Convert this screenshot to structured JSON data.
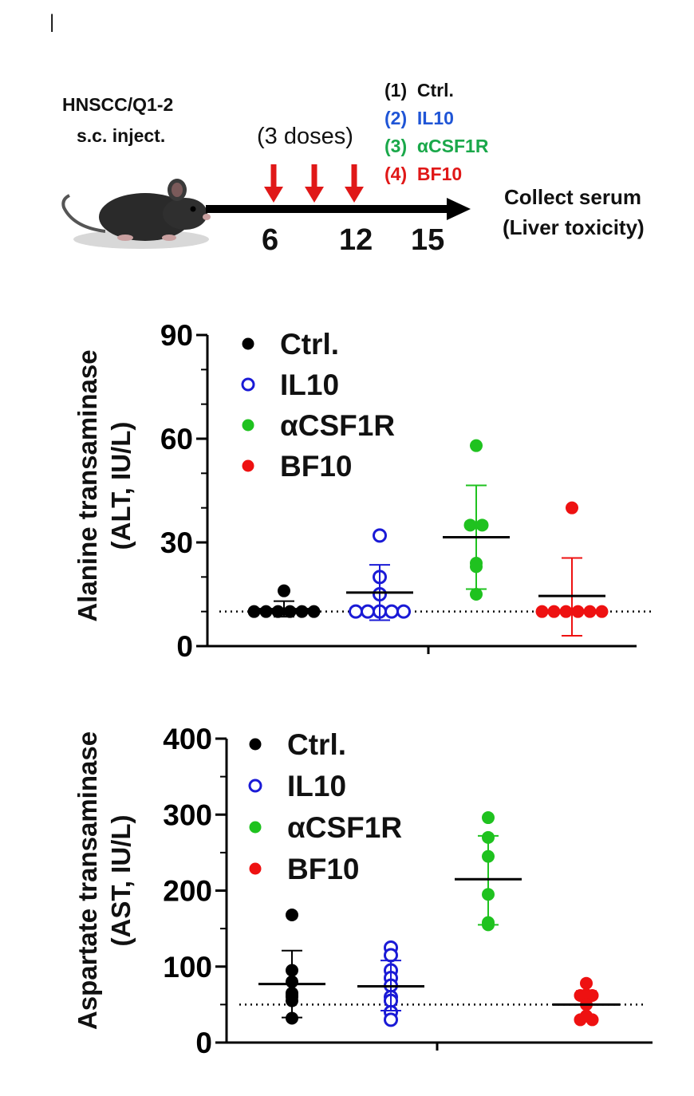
{
  "marker": "|",
  "schematic": {
    "model_line1": "HNSCC/Q1-2",
    "model_line2": "s.c. inject.",
    "doses": "(3 doses)",
    "days": [
      "6",
      "12",
      "15"
    ],
    "groups": [
      {
        "num": "(1)",
        "name": "Ctrl.",
        "color": "#111111"
      },
      {
        "num": "(2)",
        "name": "IL10",
        "color": "#1f55d6"
      },
      {
        "num": "(3)",
        "name": "αCSF1R",
        "color": "#1aa84a"
      },
      {
        "num": "(4)",
        "name": "BF10",
        "color": "#e01818"
      }
    ],
    "collect_line1": "Collect serum",
    "collect_line2": "(Liver toxicity)",
    "arrow_color": "#e01818",
    "mouse_icon": "mouse-icon"
  },
  "legend": [
    {
      "name": "Ctrl.",
      "color": "#000000",
      "filled": true
    },
    {
      "name": "IL10",
      "color": "#1a1ad6",
      "filled": false
    },
    {
      "name": "αCSF1R",
      "color": "#1fc21f",
      "filled": true
    },
    {
      "name": "BF10",
      "color": "#ee1111",
      "filled": true
    }
  ],
  "chart_data": [
    {
      "type": "scatter",
      "ylabel_line1": "Alanine transaminase",
      "ylabel_line2": "(ALT, IU/L)",
      "ylim": [
        0,
        90
      ],
      "yticks": [
        "0",
        "30",
        "60",
        "90"
      ],
      "minor_tick_step": 10,
      "dotted_line": 10,
      "groups": [
        {
          "name": "Ctrl.",
          "values": [
            16,
            10,
            10,
            10,
            10,
            10,
            10
          ],
          "mean": 10.7,
          "sd_low": 8.5,
          "sd_high": 13
        },
        {
          "name": "IL10",
          "values": [
            32,
            20,
            15,
            10,
            10,
            10,
            10,
            10
          ],
          "mean": 15.5,
          "sd_low": 7.5,
          "sd_high": 23.5
        },
        {
          "name": "αCSF1R",
          "values": [
            58,
            35,
            35,
            24,
            23,
            15
          ],
          "mean": 31.5,
          "sd_low": 16.5,
          "sd_high": 46.5
        },
        {
          "name": "BF10",
          "values": [
            40,
            10,
            10,
            10,
            10,
            10,
            10
          ],
          "mean": 14.5,
          "sd_low": 3,
          "sd_high": 25.5
        }
      ]
    },
    {
      "type": "scatter",
      "ylabel_line1": "Aspartate transaminase",
      "ylabel_line2": "(AST, IU/L)",
      "ylim": [
        0,
        400
      ],
      "yticks": [
        "0",
        "100",
        "200",
        "300",
        "400"
      ],
      "minor_tick_step": 50,
      "dotted_line": 50,
      "groups": [
        {
          "name": "Ctrl.",
          "values": [
            168,
            95,
            80,
            65,
            62,
            60,
            55,
            32
          ],
          "mean": 77,
          "sd_low": 33,
          "sd_high": 121
        },
        {
          "name": "IL10",
          "values": [
            125,
            115,
            95,
            85,
            75,
            60,
            55,
            40,
            30
          ],
          "mean": 74,
          "sd_low": 42,
          "sd_high": 108
        },
        {
          "name": "αCSF1R",
          "values": [
            296,
            270,
            245,
            195,
            158,
            155
          ],
          "mean": 215,
          "sd_low": 155,
          "sd_high": 272
        },
        {
          "name": "BF10",
          "values": [
            78,
            63,
            62,
            62,
            50,
            35,
            30,
            30
          ],
          "mean": 50,
          "sd_low": 32,
          "sd_high": 68
        }
      ]
    }
  ]
}
